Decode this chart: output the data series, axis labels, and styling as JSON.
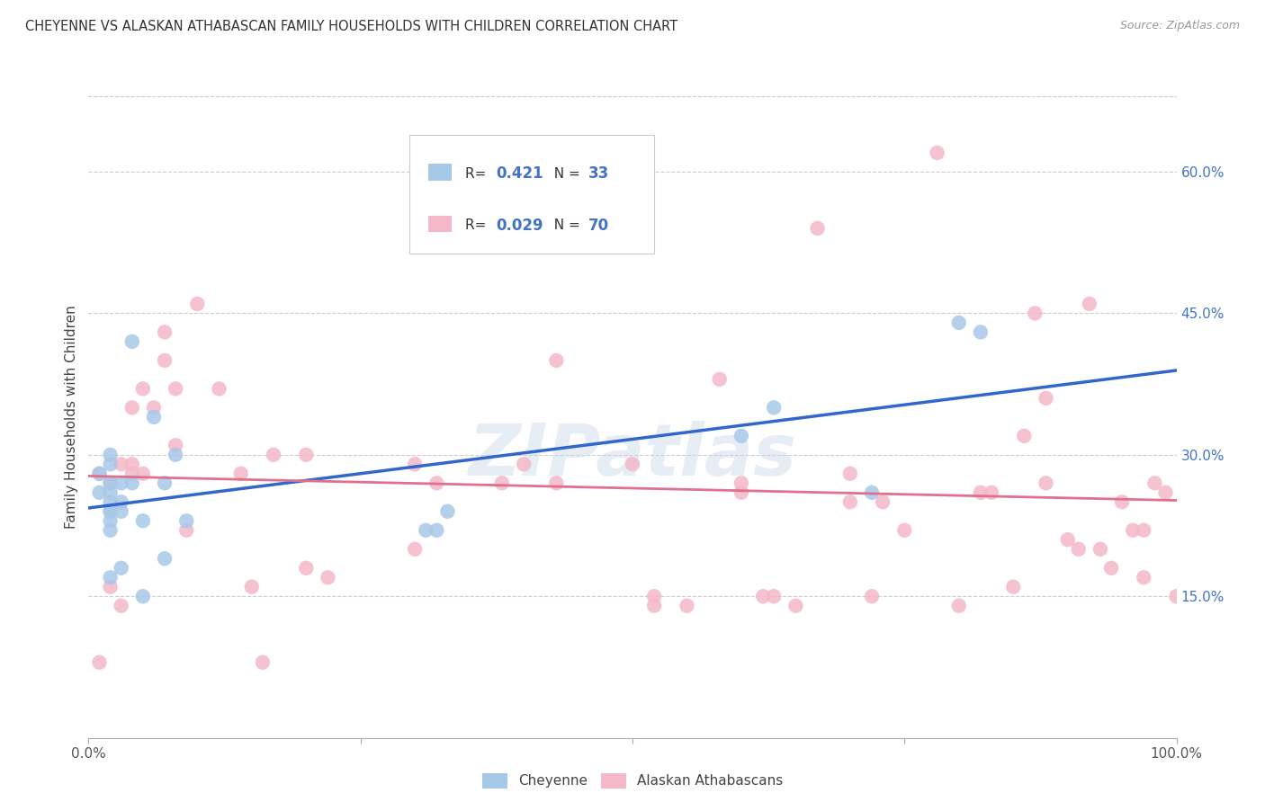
{
  "title": "CHEYENNE VS ALASKAN ATHABASCAN FAMILY HOUSEHOLDS WITH CHILDREN CORRELATION CHART",
  "source": "Source: ZipAtlas.com",
  "ylabel": "Family Households with Children",
  "cheyenne_R": "0.421",
  "cheyenne_N": "33",
  "athabascan_R": "0.029",
  "athabascan_N": "70",
  "cheyenne_color": "#a8c8e8",
  "athabascan_color": "#f4b8c8",
  "cheyenne_line_color": "#3366cc",
  "athabascan_line_color": "#e07090",
  "legend_label_1": "Cheyenne",
  "legend_label_2": "Alaskan Athabascans",
  "watermark": "ZIPatlas",
  "ytick_labels": [
    "15.0%",
    "30.0%",
    "45.0%",
    "60.0%"
  ],
  "ytick_values": [
    0.15,
    0.3,
    0.45,
    0.6
  ],
  "xtick_labels": [
    "0.0%",
    "",
    "",
    "",
    "100.0%"
  ],
  "xtick_values": [
    0.0,
    0.25,
    0.5,
    0.75,
    1.0
  ],
  "xlim": [
    0.0,
    1.0
  ],
  "ylim": [
    0.0,
    0.68
  ],
  "cheyenne_x": [
    0.01,
    0.01,
    0.02,
    0.02,
    0.02,
    0.02,
    0.02,
    0.02,
    0.02,
    0.02,
    0.02,
    0.02,
    0.03,
    0.03,
    0.03,
    0.03,
    0.04,
    0.04,
    0.05,
    0.05,
    0.06,
    0.07,
    0.07,
    0.08,
    0.09,
    0.31,
    0.32,
    0.33,
    0.6,
    0.63,
    0.72,
    0.8,
    0.82
  ],
  "cheyenne_y": [
    0.28,
    0.26,
    0.3,
    0.29,
    0.27,
    0.25,
    0.24,
    0.26,
    0.24,
    0.23,
    0.22,
    0.17,
    0.27,
    0.25,
    0.24,
    0.18,
    0.42,
    0.27,
    0.23,
    0.15,
    0.34,
    0.27,
    0.19,
    0.3,
    0.23,
    0.22,
    0.22,
    0.24,
    0.32,
    0.35,
    0.26,
    0.44,
    0.43
  ],
  "athabascan_x": [
    0.01,
    0.01,
    0.02,
    0.02,
    0.03,
    0.03,
    0.04,
    0.04,
    0.05,
    0.05,
    0.06,
    0.07,
    0.07,
    0.08,
    0.08,
    0.09,
    0.1,
    0.12,
    0.15,
    0.16,
    0.17,
    0.2,
    0.2,
    0.22,
    0.3,
    0.3,
    0.32,
    0.38,
    0.4,
    0.43,
    0.43,
    0.5,
    0.52,
    0.55,
    0.58,
    0.6,
    0.6,
    0.62,
    0.65,
    0.67,
    0.7,
    0.7,
    0.72,
    0.73,
    0.75,
    0.78,
    0.8,
    0.82,
    0.83,
    0.85,
    0.86,
    0.87,
    0.88,
    0.88,
    0.9,
    0.91,
    0.92,
    0.93,
    0.94,
    0.95,
    0.96,
    0.97,
    0.97,
    0.98,
    0.99,
    1.0,
    0.63,
    0.52,
    0.14,
    0.04
  ],
  "athabascan_y": [
    0.28,
    0.08,
    0.27,
    0.16,
    0.29,
    0.14,
    0.35,
    0.29,
    0.37,
    0.28,
    0.35,
    0.43,
    0.4,
    0.37,
    0.31,
    0.22,
    0.46,
    0.37,
    0.16,
    0.08,
    0.3,
    0.3,
    0.18,
    0.17,
    0.29,
    0.2,
    0.27,
    0.27,
    0.29,
    0.4,
    0.27,
    0.29,
    0.15,
    0.14,
    0.38,
    0.27,
    0.26,
    0.15,
    0.14,
    0.54,
    0.28,
    0.25,
    0.15,
    0.25,
    0.22,
    0.62,
    0.14,
    0.26,
    0.26,
    0.16,
    0.32,
    0.45,
    0.36,
    0.27,
    0.21,
    0.2,
    0.46,
    0.2,
    0.18,
    0.25,
    0.22,
    0.17,
    0.22,
    0.27,
    0.26,
    0.15,
    0.15,
    0.14,
    0.28,
    0.28
  ]
}
